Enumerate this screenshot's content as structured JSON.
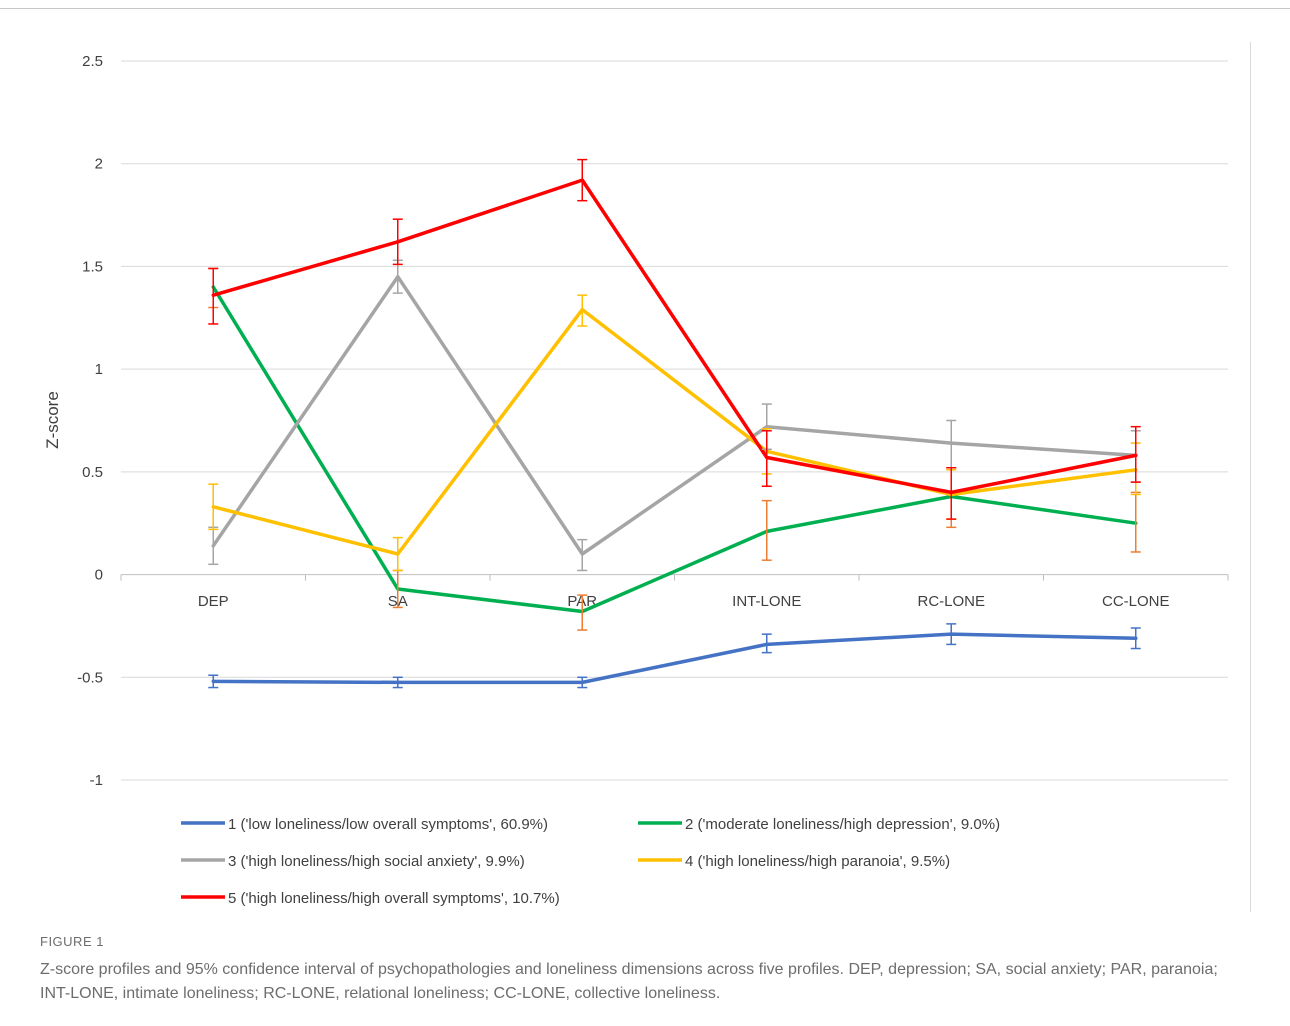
{
  "figure": {
    "label": "FIGURE 1",
    "caption": "Z-score profiles and 95% confidence interval of psychopathologies and loneliness dimensions across five profiles. DEP, depression; SA, social anxiety; PAR, paranoia; INT-LONE, intimate loneliness; RC-LONE, relational loneliness; CC-LONE, collective loneliness."
  },
  "chart_data": {
    "type": "line",
    "title": "",
    "xlabel": "",
    "ylabel": "Z-score",
    "ylim": [
      -1,
      2.5
    ],
    "yticks": [
      -1,
      -0.5,
      0,
      0.5,
      1,
      1.5,
      2,
      2.5
    ],
    "ytick_labels": [
      "-1",
      "-0.5",
      "0",
      "0.5",
      "1",
      "1.5",
      "2",
      "2.5"
    ],
    "categories": [
      "DEP",
      "SA",
      "PAR",
      "INT-LONE",
      "RC-LONE",
      "CC-LONE"
    ],
    "grid": true,
    "legend_position": "bottom",
    "series": [
      {
        "name": "1 ('low loneliness/low overall symptoms', 60.9%)",
        "color": "#4472c4",
        "error_color": "#4472c4",
        "values": [
          -0.52,
          -0.525,
          -0.525,
          -0.34,
          -0.29,
          -0.31
        ],
        "err_low": [
          -0.55,
          -0.55,
          -0.55,
          -0.38,
          -0.34,
          -0.36
        ],
        "err_high": [
          -0.49,
          -0.5,
          -0.5,
          -0.29,
          -0.24,
          -0.26
        ]
      },
      {
        "name": "2 ('moderate loneliness/high depression', 9.0%)",
        "color": "#00b050",
        "error_color": "#ed7d31",
        "values": [
          1.4,
          -0.07,
          -0.18,
          0.21,
          0.38,
          0.25
        ],
        "err_low": [
          1.3,
          -0.16,
          -0.27,
          0.07,
          0.23,
          0.11
        ],
        "err_high": [
          1.49,
          0.02,
          -0.1,
          0.36,
          0.52,
          0.4
        ]
      },
      {
        "name": "3 ('high loneliness/high social anxiety', 9.9%)",
        "color": "#a5a5a5",
        "error_color": "#a5a5a5",
        "values": [
          0.14,
          1.45,
          0.1,
          0.72,
          0.64,
          0.58
        ],
        "err_low": [
          0.05,
          1.37,
          0.02,
          0.61,
          0.52,
          0.45
        ],
        "err_high": [
          0.23,
          1.53,
          0.17,
          0.83,
          0.75,
          0.7
        ]
      },
      {
        "name": "4 ('high loneliness/high paranoia', 9.5%)",
        "color": "#ffc000",
        "error_color": "#ffc000",
        "values": [
          0.33,
          0.1,
          1.29,
          0.6,
          0.39,
          0.51
        ],
        "err_low": [
          0.22,
          0.02,
          1.21,
          0.49,
          0.27,
          0.39
        ],
        "err_high": [
          0.44,
          0.18,
          1.36,
          0.71,
          0.51,
          0.64
        ]
      },
      {
        "name": "5 ('high loneliness/high overall symptoms', 10.7%)",
        "color": "#ff0000",
        "error_color": "#ff0000",
        "values": [
          1.36,
          1.62,
          1.92,
          0.57,
          0.4,
          0.58
        ],
        "err_low": [
          1.22,
          1.51,
          1.82,
          0.43,
          0.27,
          0.45
        ],
        "err_high": [
          1.49,
          1.73,
          2.02,
          0.7,
          0.52,
          0.72
        ]
      }
    ]
  }
}
